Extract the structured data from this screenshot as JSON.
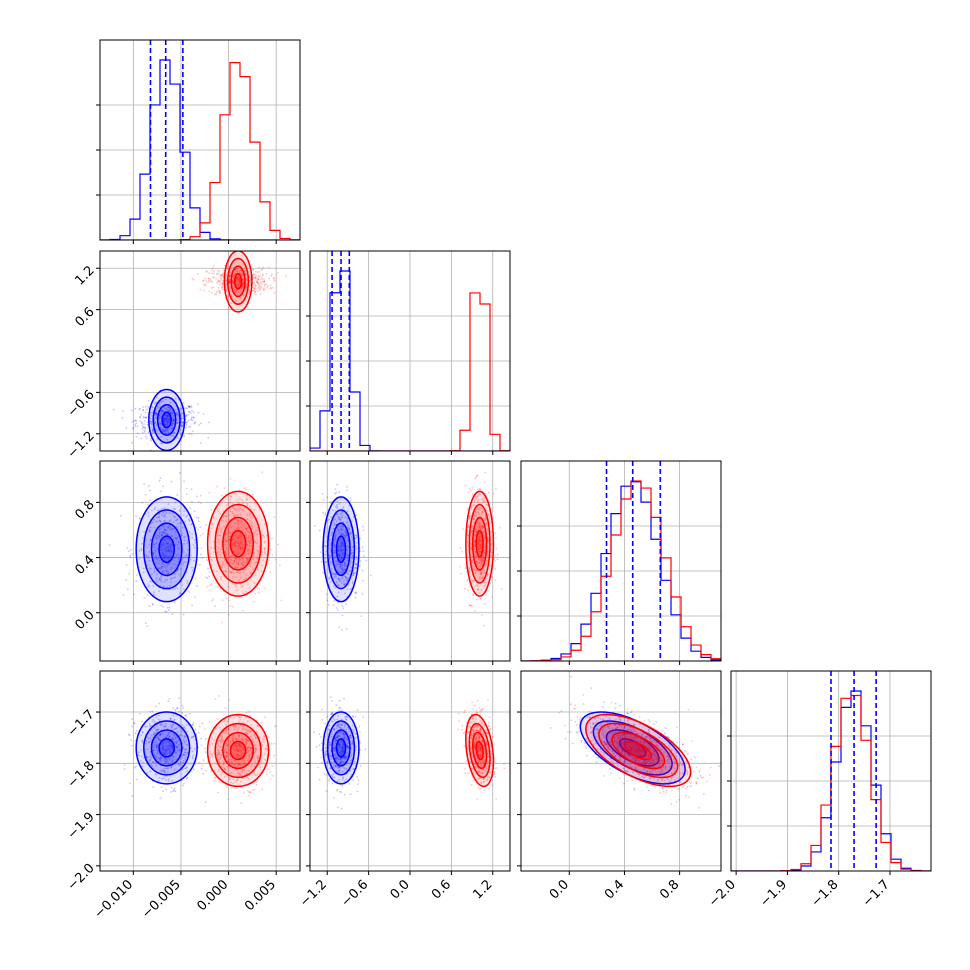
{
  "chart_data": {
    "type": "corner",
    "grid": true,
    "colors": {
      "blue": "#0000ff",
      "red": "#ff0000"
    },
    "series": [
      {
        "color": "blue",
        "mean": [
          -0.0065,
          -1.0,
          0.46,
          -1.77
        ],
        "std": [
          0.0016,
          0.13,
          0.19,
          0.035
        ],
        "corr_23": -0.6
      },
      {
        "color": "red",
        "mean": [
          0.001,
          1.01,
          0.5,
          -1.775
        ],
        "std": [
          0.0016,
          0.1,
          0.19,
          0.035
        ],
        "corr_13": -0.3,
        "corr_23": -0.6
      }
    ],
    "quantile_lines": [
      [
        -0.0082,
        -0.0066,
        -0.0048
      ],
      [
        -1.13,
        -1.0,
        -0.88
      ],
      [
        0.27,
        0.46,
        0.66
      ],
      [
        -1.815,
        -1.77,
        -1.727
      ]
    ],
    "axes": [
      {
        "lim": [
          -0.0135,
          0.0075
        ],
        "ticks": [
          -0.01,
          -0.005,
          0.0,
          0.005
        ],
        "ticklabels": [
          "−0.010",
          "−0.005",
          "0.000",
          "0.005"
        ]
      },
      {
        "lim": [
          -1.45,
          1.45
        ],
        "ticks": [
          -1.2,
          -0.6,
          0.0,
          0.6,
          1.2
        ],
        "ticklabels": [
          "−1.2",
          "−0.6",
          "0.0",
          "0.6",
          "1.2"
        ]
      },
      {
        "lim": [
          -0.35,
          1.1
        ],
        "ticks": [
          0.0,
          0.4,
          0.8
        ],
        "ticklabels": [
          "0.0",
          "0.4",
          "0.8"
        ]
      },
      {
        "lim": [
          -2.01,
          -1.62
        ],
        "ticks": [
          -2.0,
          -1.9,
          -1.8,
          -1.7
        ],
        "ticklabels": [
          "−2.0",
          "−1.9",
          "−1.8",
          "−1.7"
        ]
      }
    ]
  }
}
